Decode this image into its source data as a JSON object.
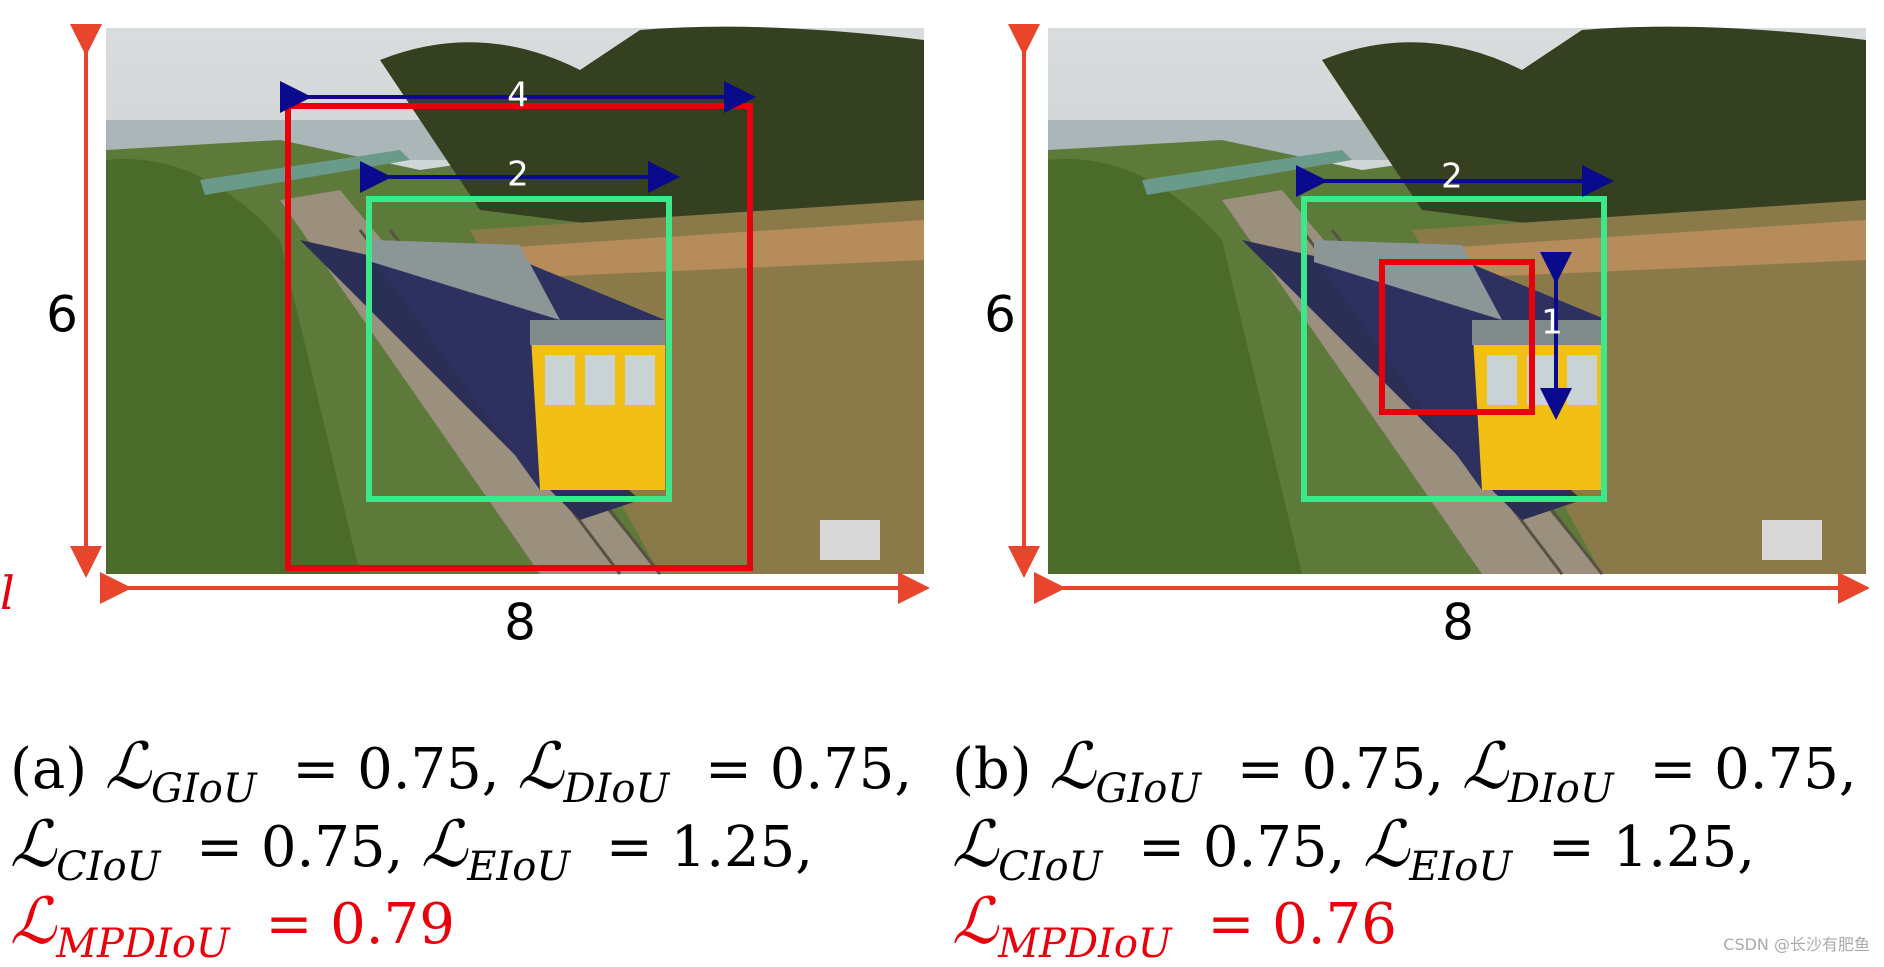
{
  "panels": [
    {
      "id": "a",
      "dims": {
        "height": "6",
        "width": "8",
        "red_width": "4",
        "green_width": "2",
        "red_height": ""
      },
      "caption": {
        "tag": "(a)",
        "giou_value": "= 0.75,",
        "diou_value": "= 0.75,",
        "ciou_value": "= 0.75,",
        "eiou_value": "= 1.25,",
        "mpdiou_value": "= 0.79"
      }
    },
    {
      "id": "b",
      "dims": {
        "height": "6",
        "width": "8",
        "red_width": "",
        "green_width": "2",
        "red_height": "1"
      },
      "caption": {
        "tag": "(b)",
        "giou_value": "= 0.75,",
        "diou_value": "= 0.75,",
        "ciou_value": "= 0.75,",
        "eiou_value": "= 1.25,",
        "mpdiou_value": "= 0.76"
      }
    }
  ],
  "loss_symbol": "ℒ",
  "loss_names": {
    "giou": "GIoU",
    "diou": "DIoU",
    "ciou": "CIoU",
    "eiou": "EIoU",
    "mpdiou": "MPDIoU"
  },
  "colors": {
    "dimension_arrow": "#e8452c",
    "pred_box": "#e8000b",
    "gt_box": "#3de88a",
    "width_arrow": "#0a0a8c",
    "mpdiou_text": "#e8000b"
  },
  "watermark": "CSDN @长沙有肥鱼",
  "cut_mark": "l"
}
